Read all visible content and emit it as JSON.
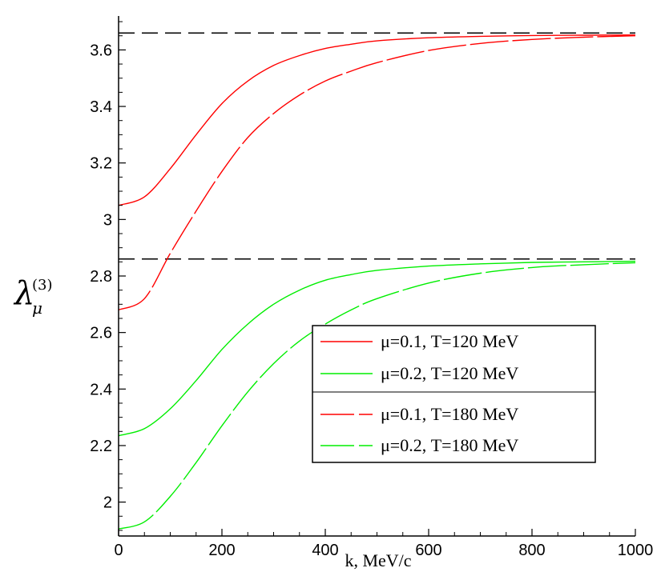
{
  "chart_data": {
    "type": "line",
    "title": "",
    "xlabel": "k,  MeV/c",
    "ylabel": {
      "main": "λ",
      "subscript": "μ",
      "superscript": "(3)"
    },
    "xlim": [
      0,
      1000
    ],
    "ylim": [
      1.88,
      3.72
    ],
    "xticks": [
      0,
      200,
      400,
      600,
      800,
      1000
    ],
    "yticks": [
      2,
      2.2,
      2.4,
      2.6,
      2.8,
      3,
      3.2,
      3.4,
      3.6
    ],
    "xtick_labels": [
      "0",
      "200",
      "400",
      "600",
      "800",
      "1000"
    ],
    "ytick_labels": [
      "2",
      "2.2",
      "2.4",
      "2.6",
      "2.8",
      "3",
      "3.2",
      "3.4",
      "3.6"
    ],
    "grid": false,
    "legend_position": "center-right",
    "reference_lines": [
      {
        "y": 3.66,
        "style": "dashed",
        "color": "#000000"
      },
      {
        "y": 2.86,
        "style": "dashed",
        "color": "#000000"
      }
    ],
    "series": [
      {
        "name": "μ=0.1,  T=120 MeV",
        "color": "#ff0000",
        "style": "solid",
        "x": [
          0,
          50,
          100,
          150,
          200,
          250,
          300,
          350,
          400,
          450,
          500,
          600,
          700,
          800,
          900,
          1000
        ],
        "y": [
          3.05,
          3.08,
          3.18,
          3.3,
          3.41,
          3.49,
          3.545,
          3.58,
          3.605,
          3.62,
          3.632,
          3.643,
          3.648,
          3.651,
          3.652,
          3.653
        ]
      },
      {
        "name": "μ=0.2,  T=120 MeV",
        "color": "#00ee00",
        "style": "solid",
        "x": [
          0,
          50,
          100,
          150,
          200,
          250,
          300,
          350,
          400,
          450,
          500,
          600,
          700,
          800,
          900,
          1000
        ],
        "y": [
          2.235,
          2.26,
          2.33,
          2.43,
          2.54,
          2.63,
          2.7,
          2.75,
          2.785,
          2.805,
          2.82,
          2.835,
          2.843,
          2.848,
          2.85,
          2.852
        ]
      },
      {
        "name": "μ=0.1,  T=180 MeV",
        "color": "#ff0000",
        "style": "long-dash",
        "x": [
          0,
          50,
          100,
          150,
          200,
          250,
          300,
          350,
          400,
          450,
          500,
          600,
          700,
          800,
          900,
          1000
        ],
        "y": [
          2.68,
          2.72,
          2.88,
          3.03,
          3.17,
          3.29,
          3.375,
          3.44,
          3.49,
          3.525,
          3.555,
          3.598,
          3.623,
          3.637,
          3.645,
          3.65
        ]
      },
      {
        "name": "μ=0.2,  T=180 MeV",
        "color": "#00ee00",
        "style": "long-dash",
        "x": [
          0,
          50,
          100,
          150,
          200,
          250,
          300,
          350,
          400,
          450,
          500,
          600,
          700,
          800,
          900,
          1000
        ],
        "y": [
          1.905,
          1.93,
          2.02,
          2.14,
          2.27,
          2.39,
          2.49,
          2.57,
          2.63,
          2.68,
          2.72,
          2.775,
          2.81,
          2.83,
          2.84,
          2.847
        ]
      }
    ]
  }
}
